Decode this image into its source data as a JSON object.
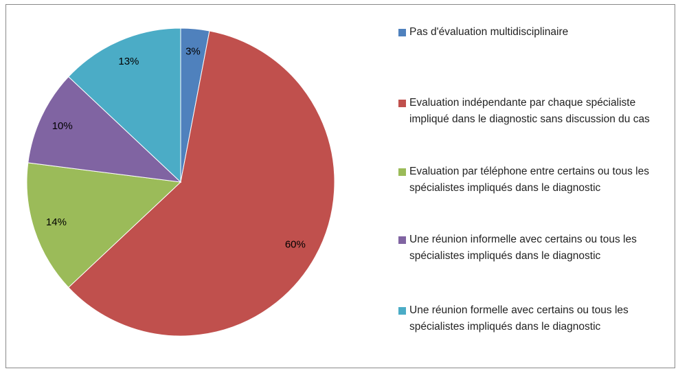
{
  "chart_data": {
    "type": "pie",
    "categories": [
      "Pas d'évaluation multidisciplinaire",
      "Evaluation indépendante par chaque spécialiste impliqué dans le diagnostic sans discussion du cas",
      "Evaluation par téléphone entre certains ou tous les spécialistes impliqués dans le diagnostic",
      "Une réunion informelle avec  certains ou tous les spécialistes impliqués dans le diagnostic",
      "Une réunion formelle avec  certains ou tous les spécialistes impliqués dans le diagnostic"
    ],
    "values": [
      3,
      60,
      14,
      10,
      13
    ],
    "value_labels": [
      "3%",
      "60%",
      "14%",
      "10%",
      "13%"
    ],
    "colors": [
      "#4f81bd",
      "#c0504d",
      "#9bbb59",
      "#8064a2",
      "#4bacc6"
    ],
    "legend": "right"
  }
}
